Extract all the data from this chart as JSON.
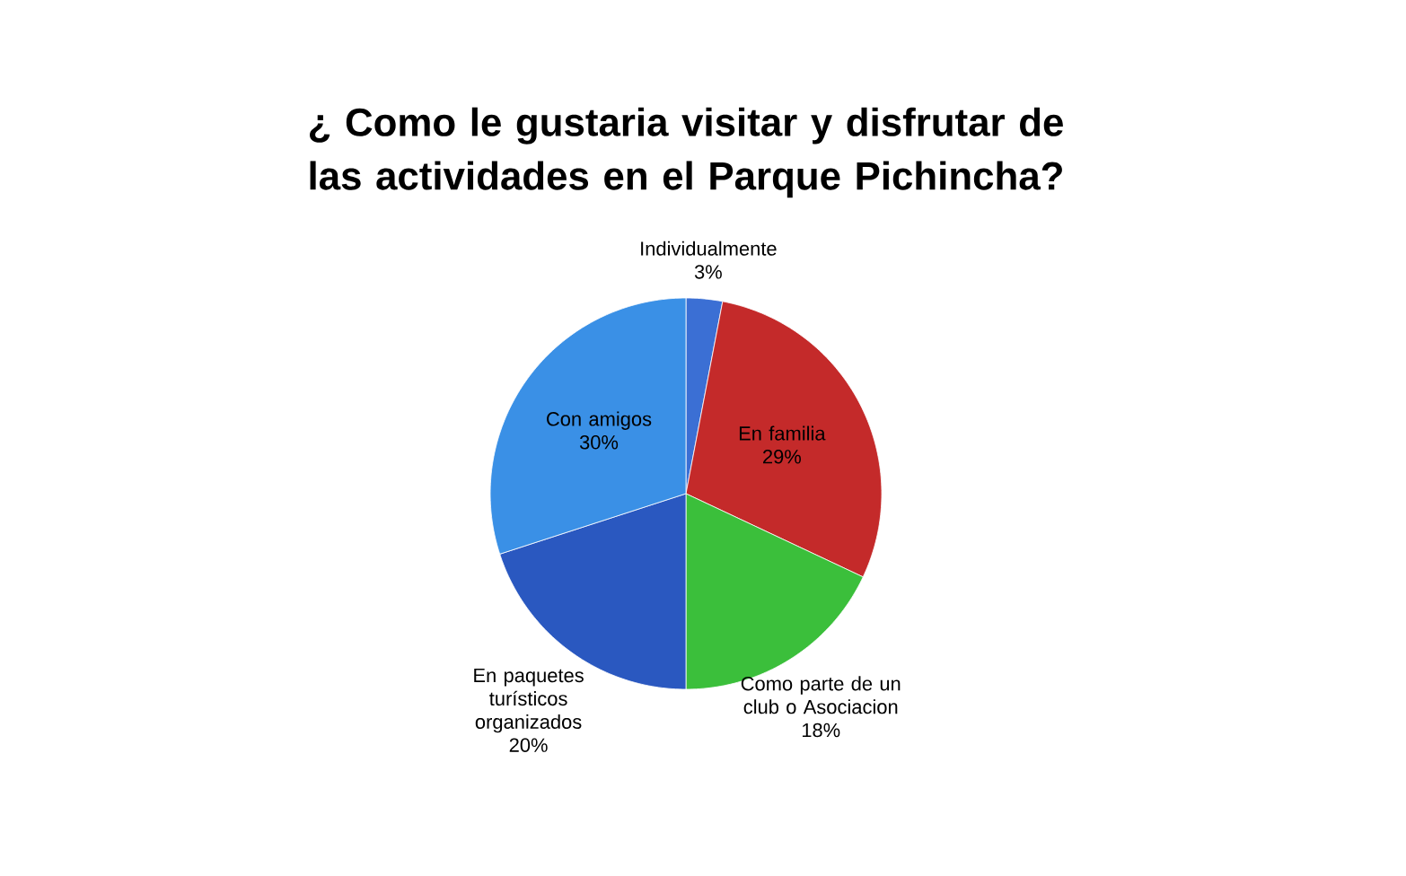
{
  "chart_data": {
    "type": "pie",
    "title": "¿ Como le gustaria visitar y disfrutar de las actividades en el Parque Pichincha?",
    "categories": [
      "Individualmente",
      "En familia",
      "Como parte de un club o Asociacion",
      "En paquetes turísticos organizados",
      "Con amigos"
    ],
    "values": [
      3,
      29,
      18,
      20,
      30
    ],
    "value_labels": [
      "3%",
      "29%",
      "18%",
      "20%",
      "30%"
    ],
    "colors": [
      "#3b6fd4",
      "#c42a2a",
      "#3bbf3b",
      "#2a58c0",
      "#3a90e6"
    ]
  }
}
